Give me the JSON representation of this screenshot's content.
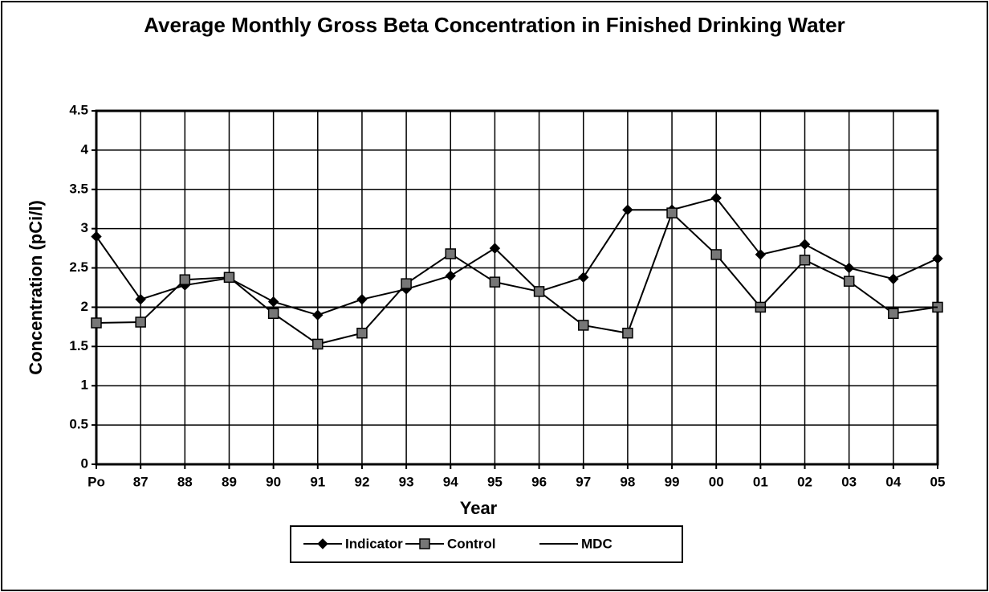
{
  "chart_data": {
    "type": "line",
    "title": "Average Monthly Gross Beta Concentration in Finished Drinking Water",
    "x_label": "Year",
    "y_label": "Concentration (pCi/l)",
    "categories": [
      "Po",
      "87",
      "88",
      "89",
      "90",
      "91",
      "92",
      "93",
      "94",
      "95",
      "96",
      "97",
      "98",
      "99",
      "00",
      "01",
      "02",
      "03",
      "04",
      "05"
    ],
    "series": [
      {
        "name": "Indicator",
        "color": "#000000",
        "marker": "diamond",
        "values": [
          2.9,
          2.1,
          2.28,
          2.37,
          2.07,
          1.9,
          2.1,
          2.23,
          2.4,
          2.75,
          2.2,
          2.38,
          3.24,
          3.24,
          3.39,
          2.67,
          2.8,
          2.5,
          2.36,
          2.62
        ]
      },
      {
        "name": "Control",
        "color": "#000000",
        "marker": "square",
        "values": [
          1.8,
          1.81,
          2.35,
          2.38,
          1.92,
          1.53,
          1.67,
          2.3,
          2.68,
          2.32,
          2.2,
          1.77,
          1.67,
          3.2,
          2.67,
          2.0,
          2.6,
          2.33,
          1.92,
          2.0
        ]
      },
      {
        "name": "MDC",
        "color": "#000000",
        "marker": "none",
        "values": [
          2,
          2,
          2,
          2,
          2,
          2,
          2,
          2,
          2,
          2,
          2,
          2,
          2,
          2,
          2,
          2,
          2,
          2,
          2,
          2
        ]
      }
    ],
    "ylim": [
      0,
      4.5
    ],
    "yticks": [
      0,
      0.5,
      1,
      1.5,
      2,
      2.5,
      3,
      3.5,
      4,
      4.5
    ],
    "grid": true,
    "legend": "bottom"
  }
}
